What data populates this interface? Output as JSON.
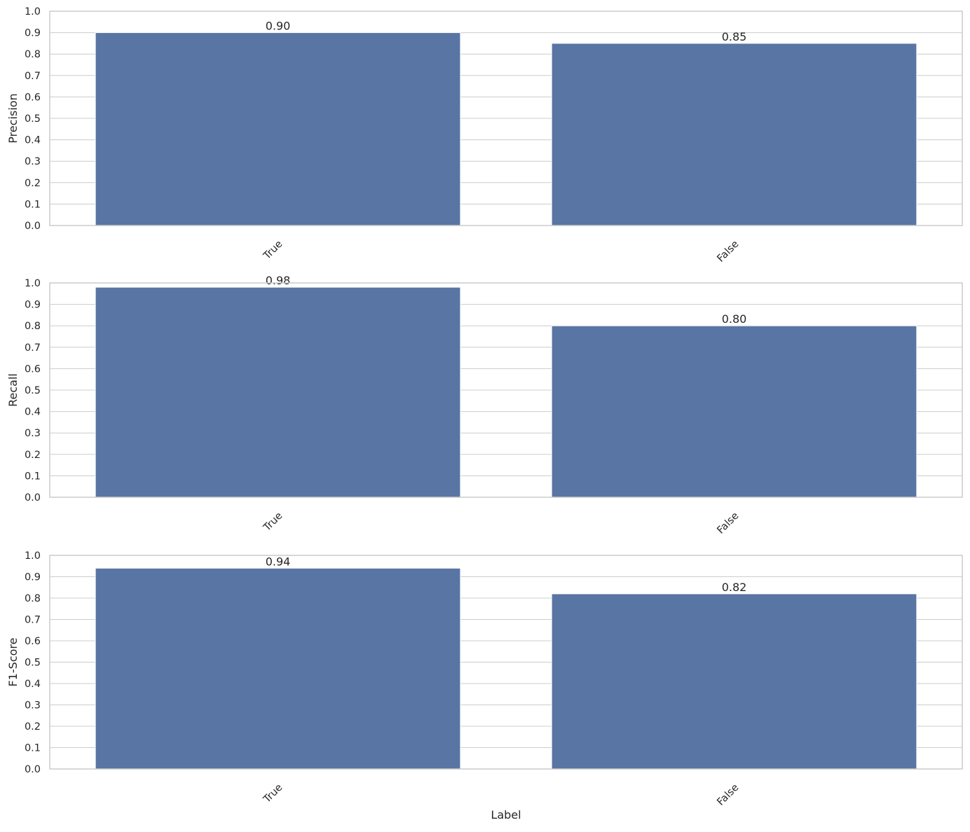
{
  "chart_data": [
    {
      "type": "bar",
      "categories": [
        "True",
        "False"
      ],
      "values": [
        0.9,
        0.85
      ],
      "value_labels": [
        "0.90",
        "0.85"
      ],
      "xlabel": "",
      "ylabel": "Precision",
      "ylim": [
        0,
        1.0
      ],
      "yticks": [
        "0.0",
        "0.1",
        "0.2",
        "0.3",
        "0.4",
        "0.5",
        "0.6",
        "0.7",
        "0.8",
        "0.9",
        "1.0"
      ],
      "grid": true,
      "color": "#5975a4"
    },
    {
      "type": "bar",
      "categories": [
        "True",
        "False"
      ],
      "values": [
        0.98,
        0.8
      ],
      "value_labels": [
        "0.98",
        "0.80"
      ],
      "xlabel": "",
      "ylabel": "Recall",
      "ylim": [
        0,
        1.0
      ],
      "yticks": [
        "0.0",
        "0.1",
        "0.2",
        "0.3",
        "0.4",
        "0.5",
        "0.6",
        "0.7",
        "0.8",
        "0.9",
        "1.0"
      ],
      "grid": true,
      "color": "#5975a4"
    },
    {
      "type": "bar",
      "categories": [
        "True",
        "False"
      ],
      "values": [
        0.94,
        0.82
      ],
      "value_labels": [
        "0.94",
        "0.82"
      ],
      "xlabel": "Label",
      "ylabel": "F1-Score",
      "ylim": [
        0,
        1.0
      ],
      "yticks": [
        "0.0",
        "0.1",
        "0.2",
        "0.3",
        "0.4",
        "0.5",
        "0.6",
        "0.7",
        "0.8",
        "0.9",
        "1.0"
      ],
      "grid": true,
      "color": "#5975a4"
    }
  ]
}
